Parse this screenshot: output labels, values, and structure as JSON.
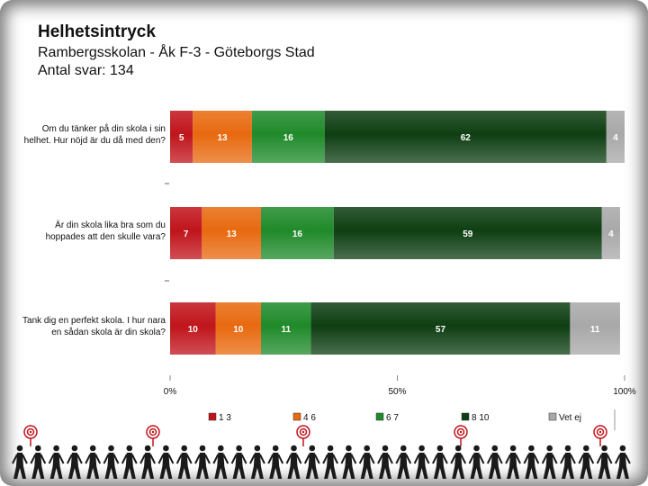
{
  "header": {
    "title": "Helhetsintryck",
    "subtitle": "Rambergsskolan - Åk F-3 - Göteborgs Stad",
    "count": "Antal svar: 134"
  },
  "colors": {
    "1-3": "#c0141b",
    "4-6": "#e8690f",
    "6-7": "#1f8a2a",
    "8-10": "#0e3e12",
    "vet_ej": "#a8a8a8"
  },
  "chart_data": {
    "type": "bar",
    "orientation": "horizontal",
    "stacked": true,
    "categories": [
      "Om du tänker på din skola i sin helhet. Hur nöjd är du då med den?",
      "Är din skola lika bra som du hoppades att den skulle vara?",
      "Tank dig en perfekt skola. I hur nara en sådan skola är din skola?"
    ],
    "category_lines": [
      [
        "Om du tänker på din skola i sin",
        "helhet. Hur nöjd är du då med den?"
      ],
      [
        "Är din skola lika bra som du",
        "hoppades att den skulle vara?"
      ],
      [
        "Tank dig en perfekt skola. I hur nara",
        "en sådan skola är din skola?"
      ]
    ],
    "series": [
      {
        "name": "1 3",
        "key": "1-3",
        "values": [
          5,
          7,
          10
        ]
      },
      {
        "name": "4 6",
        "key": "4-6",
        "values": [
          13,
          13,
          10
        ]
      },
      {
        "name": "6 7",
        "key": "6-7",
        "values": [
          16,
          16,
          11
        ]
      },
      {
        "name": "8 10",
        "key": "8-10",
        "values": [
          62,
          59,
          57
        ]
      },
      {
        "name": "Vet ej",
        "key": "vet_ej",
        "values": [
          4,
          4,
          11
        ]
      }
    ],
    "xlim": [
      0,
      100
    ],
    "x_ticks": [
      "0%",
      "50%",
      "100%"
    ],
    "legend": "bottom",
    "grid": false
  }
}
